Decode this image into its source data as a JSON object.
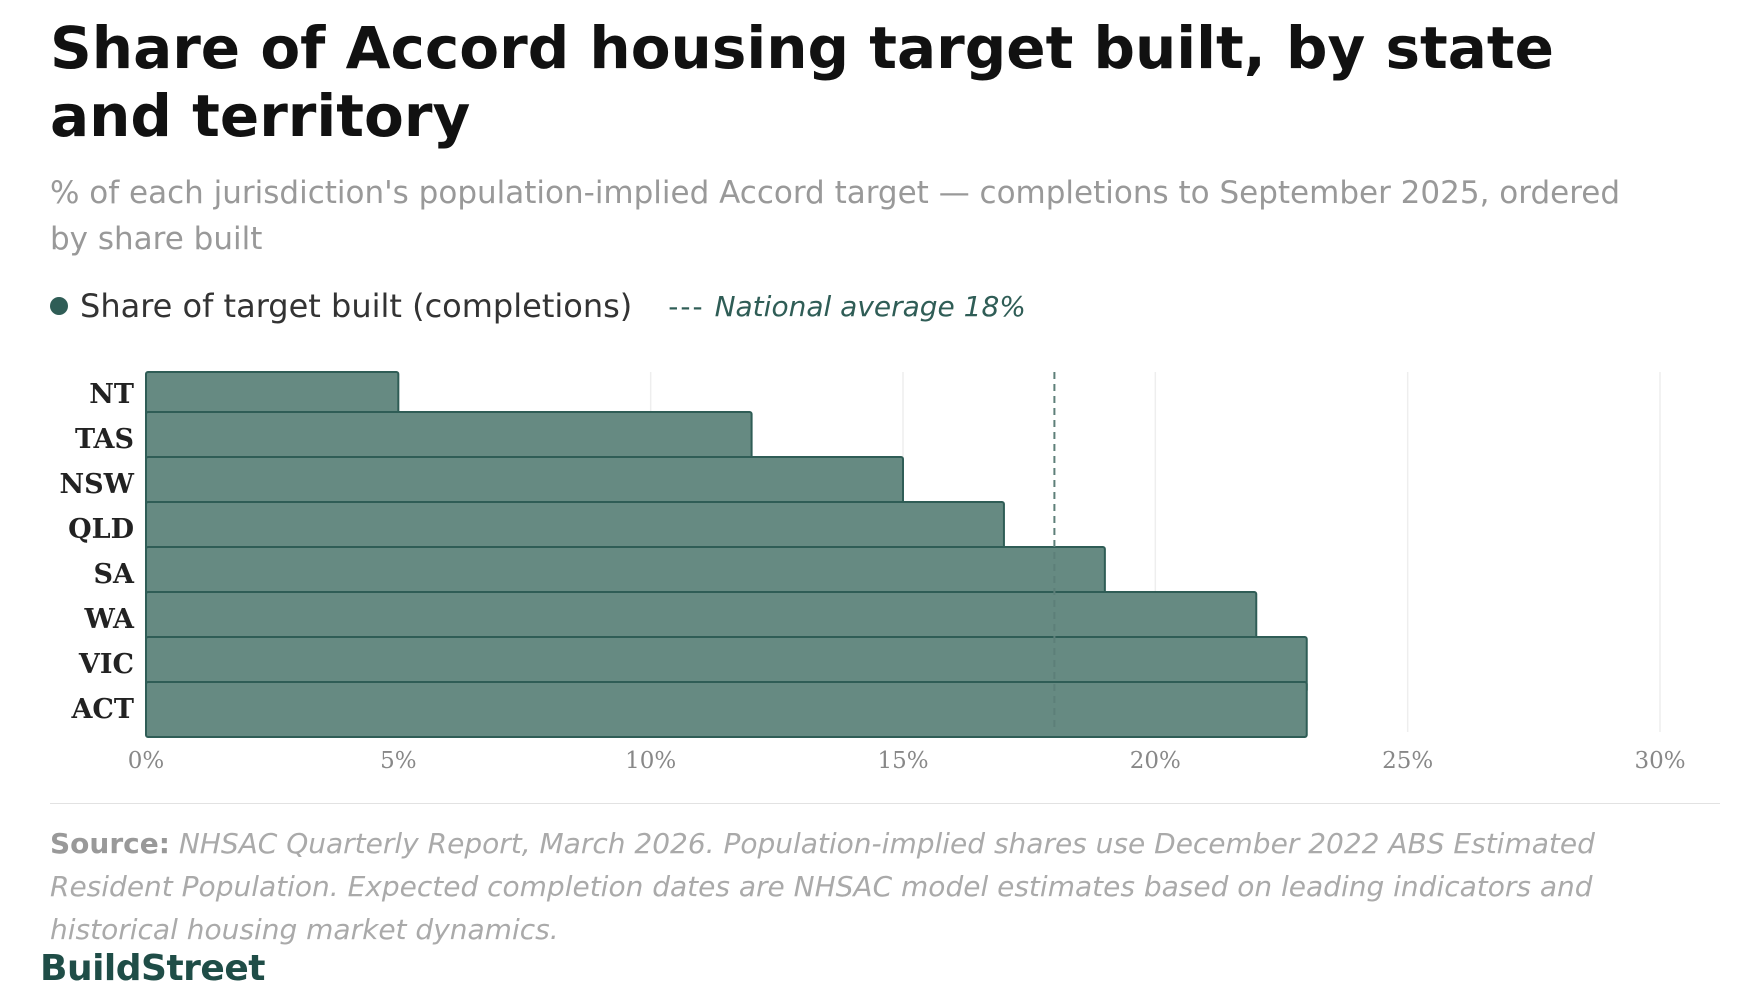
{
  "title": "Share of Accord housing target built, by state and territory",
  "subtitle": "% of each jurisdiction's population-implied Accord target — completions to September 2025, ordered by share built",
  "legend": {
    "series_label": "Share of target built (completions)",
    "reference_marker": "---",
    "reference_label": "National average 18%"
  },
  "source": {
    "label": "Source:",
    "text": "NHSAC Quarterly Report, March 2026. Population-implied shares use December 2022 ABS Estimated Resident Population. Expected completion dates are NHSAC model estimates based on leading indicators and historical housing market dynamics."
  },
  "brand": "BuildStreet",
  "colors": {
    "bar_fill": "#668a82",
    "bar_stroke": "#2f5d56",
    "reference_line": "#5d7f79",
    "grid": "#eeeeee",
    "tick_text": "#888888",
    "category_text": "#222222"
  },
  "chart_data": {
    "type": "bar",
    "orientation": "horizontal",
    "categories": [
      "NT",
      "TAS",
      "NSW",
      "QLD",
      "SA",
      "WA",
      "VIC",
      "ACT"
    ],
    "series": [
      {
        "name": "Share of target built (completions)",
        "values": [
          5,
          12,
          15,
          17,
          19,
          22,
          23,
          23
        ]
      }
    ],
    "reference_line": {
      "label": "National average 18%",
      "value": 18
    },
    "xlim": [
      0,
      30
    ],
    "x_ticks": [
      0,
      5,
      10,
      15,
      20,
      25,
      30
    ],
    "x_tick_labels": [
      "0%",
      "5%",
      "10%",
      "15%",
      "20%",
      "25%",
      "30%"
    ],
    "unit": "%",
    "grid": "vertical",
    "legend_position": "top-left"
  }
}
